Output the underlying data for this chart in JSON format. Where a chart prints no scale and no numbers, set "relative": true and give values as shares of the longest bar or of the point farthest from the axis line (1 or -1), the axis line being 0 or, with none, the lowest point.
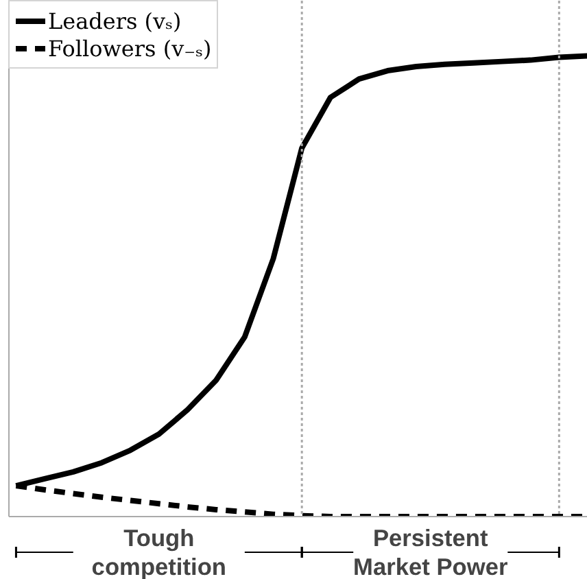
{
  "chart_data": {
    "type": "line",
    "relative": true,
    "categories": [
      null,
      null,
      null,
      null,
      null,
      null,
      null,
      null,
      null,
      null,
      null,
      null,
      null,
      null,
      null,
      null,
      null,
      null,
      null,
      null,
      null
    ],
    "series": [
      {
        "name": "Leaders (vₛ)",
        "color": "#000000",
        "line_style": "solid",
        "values": [
          0.067,
          0.082,
          0.097,
          0.117,
          0.144,
          0.179,
          0.232,
          0.296,
          0.39,
          0.56,
          0.8,
          0.91,
          0.95,
          0.968,
          0.977,
          0.982,
          0.985,
          0.988,
          0.991,
          0.997,
          1.0
        ]
      },
      {
        "name": "Followers (v₋ₛ)",
        "color": "#000000",
        "line_style": "dashed",
        "values": [
          0.067,
          0.058,
          0.05,
          0.042,
          0.035,
          0.028,
          0.021,
          0.015,
          0.01,
          0.005,
          0.002,
          0,
          0,
          0,
          0,
          0,
          0,
          0,
          0,
          0,
          0
        ]
      }
    ],
    "annotations": [
      "Tough competition",
      "Persistent Market Power"
    ],
    "legend": "top left",
    "grid": false
  }
}
